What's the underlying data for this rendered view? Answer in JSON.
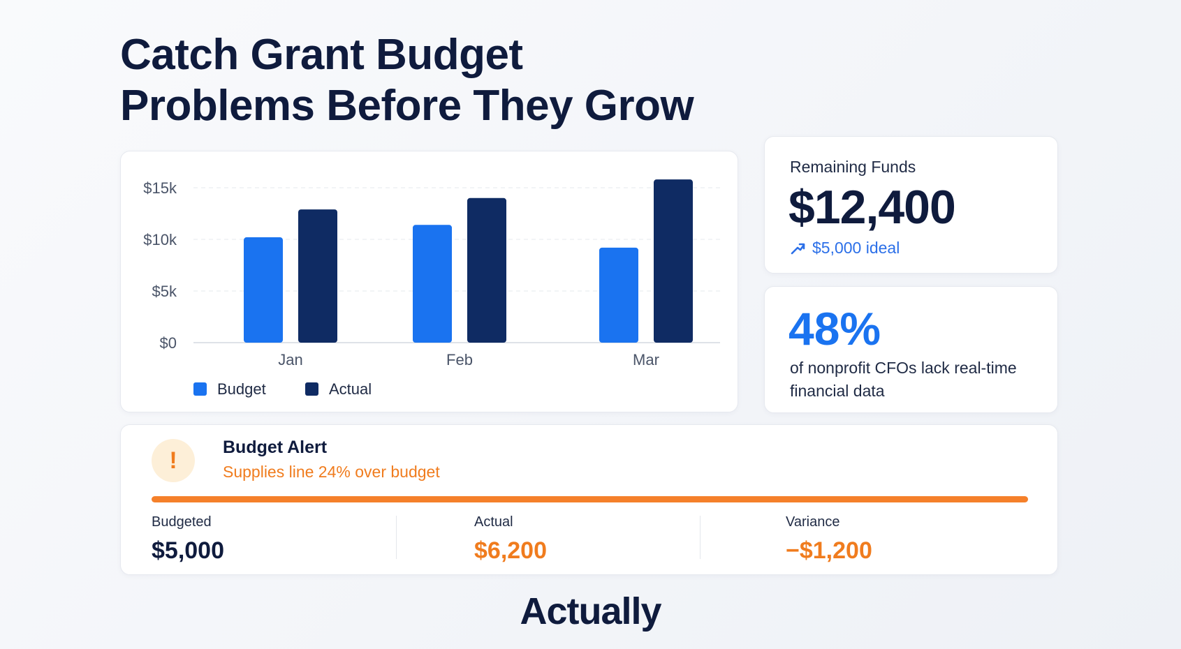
{
  "headline": {
    "line1": "Catch Grant Budget",
    "line2": "Problems Before They Grow"
  },
  "chart_data": {
    "type": "bar",
    "categories": [
      "Jan",
      "Feb",
      "Mar"
    ],
    "series": [
      {
        "name": "Budget",
        "values": [
          10200,
          11400,
          9200
        ],
        "color": "#1a73f0"
      },
      {
        "name": "Actual",
        "values": [
          12900,
          14000,
          15800
        ],
        "color": "#0f2b63"
      }
    ],
    "yticks": [
      0,
      5000,
      10000,
      15000
    ],
    "ytick_labels": [
      "$0",
      "$5k",
      "$10k",
      "$15k"
    ],
    "ylim": [
      0,
      15000
    ],
    "grid": true,
    "legend_position": "bottom-left"
  },
  "remaining_funds": {
    "label": "Remaining Funds",
    "value": "$12,400",
    "ideal": "$5,000 ideal",
    "icon": "trend-arrow-icon"
  },
  "stat": {
    "value": "48%",
    "description": "of nonprofit CFOs lack real-time financial data"
  },
  "alert": {
    "icon": "exclamation-icon",
    "title": "Budget Alert",
    "subtitle": "Supplies line 24% over budget",
    "metrics": [
      {
        "label": "Budgeted",
        "value": "$5,000"
      },
      {
        "label": "Actual",
        "value": "$6,200"
      },
      {
        "label": "Variance",
        "value": "−$1,200"
      }
    ]
  },
  "brand": "Actually",
  "colors": {
    "navy": "#0f1b3d",
    "blue": "#1a73f0",
    "orange": "#f07c1e"
  }
}
